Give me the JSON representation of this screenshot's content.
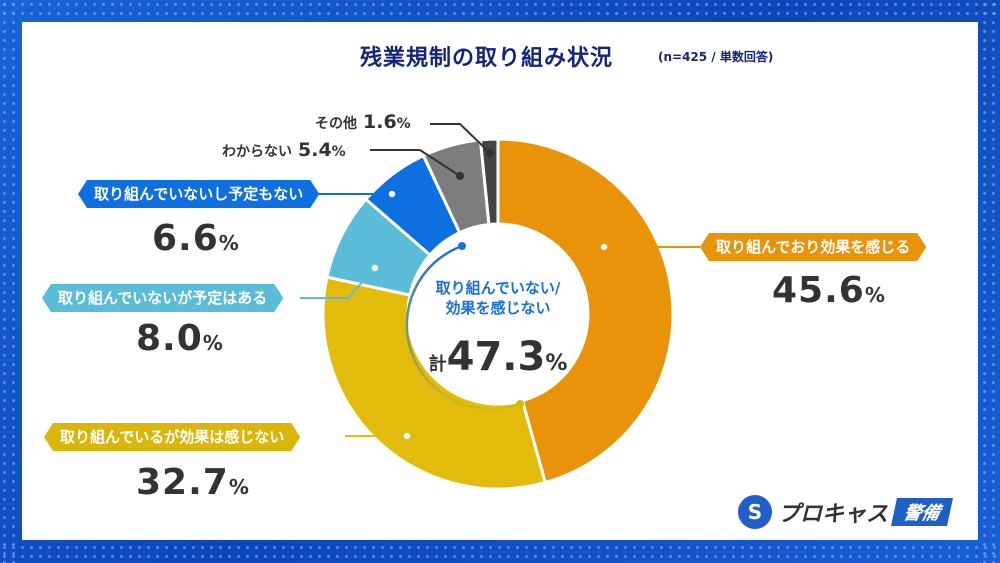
{
  "title": "残業規制の取り組み状況",
  "note": "(n=425 / 単数回答)",
  "chart_data": {
    "type": "pie",
    "title": "残業規制の取り組み状況",
    "donut": true,
    "slices": [
      {
        "label": "取り組んでおり効果を感じる",
        "value": 45.6,
        "display": "45.6",
        "color": "#e8930a"
      },
      {
        "label": "取り組んでいるが効果は感じない",
        "value": 32.7,
        "display": "32.7",
        "color": "#e2bb0c"
      },
      {
        "label": "取り組んでいないが予定はある",
        "value": 8.0,
        "display": "8.0",
        "color": "#5bbcd8"
      },
      {
        "label": "取り組んでいないし予定もない",
        "value": 6.6,
        "display": "6.6",
        "color": "#0e6fe0"
      },
      {
        "label": "わからない",
        "value": 5.4,
        "display": "5.4",
        "color": "#7d7d7d"
      },
      {
        "label": "その他",
        "value": 1.6,
        "display": "1.6",
        "color": "#444444"
      }
    ],
    "unit": "%",
    "center": {
      "line1": "取り組んでいない/",
      "line2": "効果を感じない",
      "prefix": "計",
      "value": "47.3",
      "unit": "%"
    }
  },
  "logo": {
    "brand": "プロキャス",
    "sub": "警備",
    "mark": "S"
  }
}
